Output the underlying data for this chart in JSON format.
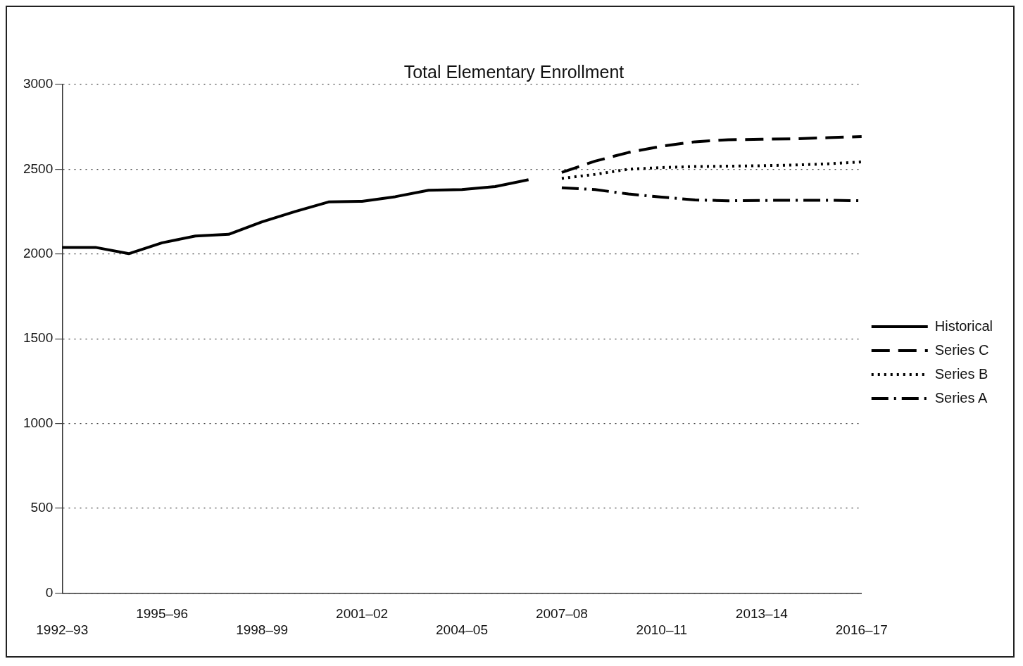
{
  "chart_data": {
    "type": "line",
    "title": "Total Elementary Enrollment",
    "categories": [
      "1992–93",
      null,
      null,
      "1995–96",
      null,
      null,
      "1998–99",
      null,
      null,
      "2001–02",
      null,
      null,
      "2004–05",
      null,
      null,
      "2007–08",
      null,
      null,
      "2010–11",
      null,
      null,
      "2013–14",
      null,
      null,
      "2016–17"
    ],
    "series": [
      {
        "name": "Historical",
        "color": "#000000",
        "line_style": "solid",
        "values": [
          2039,
          2039,
          2002,
          2066,
          2106,
          2116,
          2190,
          2251,
          2307,
          2311,
          2338,
          2376,
          2380,
          2398,
          2438,
          null,
          null,
          null,
          null,
          null,
          null,
          null,
          null,
          null,
          null
        ]
      },
      {
        "name": "Series C",
        "color": "#000000",
        "line_style": "dashed",
        "values": [
          null,
          null,
          null,
          null,
          null,
          null,
          null,
          null,
          null,
          null,
          null,
          null,
          null,
          null,
          null,
          2481,
          2548,
          2599,
          2636,
          2662,
          2674,
          2677,
          2680,
          2686,
          2693
        ]
      },
      {
        "name": "Series B",
        "color": "#000000",
        "line_style": "dotted",
        "values": [
          null,
          null,
          null,
          null,
          null,
          null,
          null,
          null,
          null,
          null,
          null,
          null,
          null,
          null,
          null,
          2446,
          2470,
          2500,
          2510,
          2516,
          2518,
          2521,
          2525,
          2532,
          2543
        ]
      },
      {
        "name": "Series A",
        "color": "#000000",
        "line_style": "dashdot",
        "values": [
          null,
          null,
          null,
          null,
          null,
          null,
          null,
          null,
          null,
          null,
          null,
          null,
          null,
          null,
          null,
          2391,
          2380,
          2354,
          2336,
          2319,
          2314,
          2316,
          2317,
          2317,
          2314
        ]
      }
    ],
    "ylim": [
      0,
      3000
    ],
    "yticks": [
      0,
      500,
      1000,
      1500,
      2000,
      2500,
      3000
    ],
    "grid": "y",
    "legend": "right",
    "marker": "none"
  }
}
